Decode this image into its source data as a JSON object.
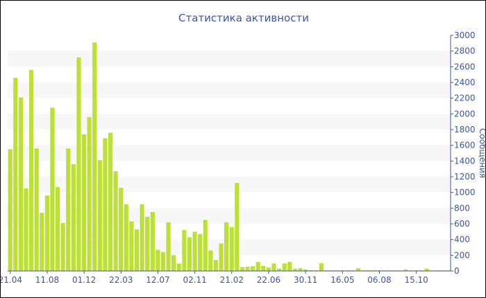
{
  "chart_data": {
    "type": "bar",
    "title": "Статистика активности",
    "ylabel": "Сообщения",
    "ylim": [
      0,
      3000
    ],
    "yticks": [
      0,
      200,
      400,
      600,
      800,
      1000,
      1200,
      1400,
      1600,
      1800,
      2000,
      2200,
      2400,
      2600,
      2800,
      3000
    ],
    "yaxis_position": "right",
    "grid": "alternating horizontal bands",
    "bar_color": "#bde034",
    "axis_color": "#3b55a0",
    "xtick_labels": [
      "21.04",
      "11.08",
      "01.12",
      "22.03",
      "12.07",
      "02.11",
      "21.02",
      "22.06",
      "30.11",
      "16.05",
      "06.08",
      "15.10"
    ],
    "xtick_every_n_bars": 7,
    "values": [
      1550,
      2460,
      2210,
      1050,
      2560,
      1560,
      740,
      960,
      2080,
      1070,
      610,
      1560,
      1360,
      2720,
      1740,
      1960,
      2910,
      1410,
      1690,
      1760,
      1270,
      1060,
      850,
      630,
      530,
      850,
      690,
      750,
      270,
      240,
      620,
      200,
      95,
      520,
      430,
      500,
      470,
      650,
      260,
      140,
      350,
      620,
      560,
      1120,
      50,
      55,
      60,
      115,
      65,
      45,
      95,
      30,
      95,
      115,
      30,
      35,
      20,
      10,
      10,
      100,
      8,
      8,
      8,
      8,
      8,
      8,
      35,
      8,
      8,
      10,
      8,
      8,
      8,
      8,
      8,
      20,
      8,
      8,
      8,
      30,
      8,
      8,
      8,
      8
    ]
  }
}
